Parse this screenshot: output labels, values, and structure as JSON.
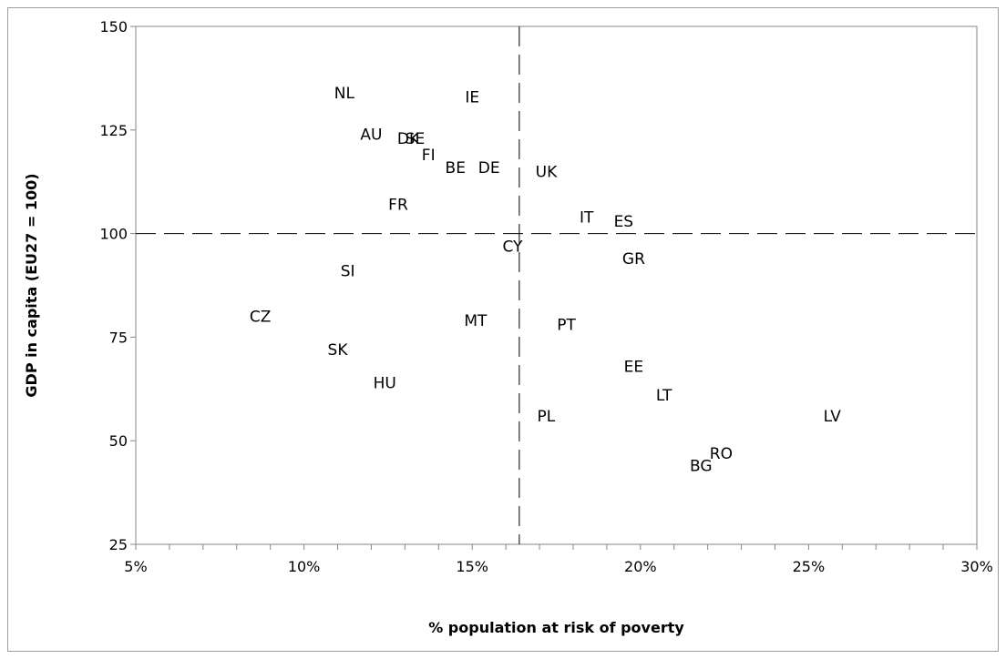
{
  "chart_data": {
    "type": "scatter",
    "title": "",
    "xlabel": "% population at risk of poverty",
    "ylabel": "GDP in capita (EU27 = 100)",
    "xlim": [
      0.05,
      0.3
    ],
    "ylim": [
      25,
      150
    ],
    "x_ticks": [
      0.05,
      0.1,
      0.15,
      0.2,
      0.25,
      0.3
    ],
    "x_tick_labels": [
      "5%",
      "10%",
      "15%",
      "20%",
      "25%",
      "30%"
    ],
    "y_ticks": [
      25,
      50,
      75,
      100,
      125,
      150
    ],
    "y_tick_labels": [
      "25",
      "50",
      "75",
      "100",
      "125",
      "150"
    ],
    "grid": false,
    "reference_lines": {
      "x": 0.164,
      "y": 100
    },
    "points": [
      {
        "label": "NL",
        "x": 0.112,
        "y": 134
      },
      {
        "label": "IE",
        "x": 0.15,
        "y": 133
      },
      {
        "label": "AU",
        "x": 0.12,
        "y": 124
      },
      {
        "label": "DK",
        "x": 0.131,
        "y": 123
      },
      {
        "label": "SE",
        "x": 0.133,
        "y": 123
      },
      {
        "label": "FI",
        "x": 0.137,
        "y": 119
      },
      {
        "label": "BE",
        "x": 0.145,
        "y": 116
      },
      {
        "label": "DE",
        "x": 0.155,
        "y": 116
      },
      {
        "label": "UK",
        "x": 0.172,
        "y": 115
      },
      {
        "label": "FR",
        "x": 0.128,
        "y": 107
      },
      {
        "label": "IT",
        "x": 0.184,
        "y": 104
      },
      {
        "label": "ES",
        "x": 0.195,
        "y": 103
      },
      {
        "label": "CY",
        "x": 0.162,
        "y": 97
      },
      {
        "label": "GR",
        "x": 0.198,
        "y": 94
      },
      {
        "label": "SI",
        "x": 0.113,
        "y": 91
      },
      {
        "label": "CZ",
        "x": 0.087,
        "y": 80
      },
      {
        "label": "MT",
        "x": 0.151,
        "y": 79
      },
      {
        "label": "PT",
        "x": 0.178,
        "y": 78
      },
      {
        "label": "SK",
        "x": 0.11,
        "y": 72
      },
      {
        "label": "EE",
        "x": 0.198,
        "y": 68
      },
      {
        "label": "HU",
        "x": 0.124,
        "y": 64
      },
      {
        "label": "LT",
        "x": 0.207,
        "y": 61
      },
      {
        "label": "PL",
        "x": 0.172,
        "y": 56
      },
      {
        "label": "LV",
        "x": 0.257,
        "y": 56
      },
      {
        "label": "RO",
        "x": 0.224,
        "y": 47
      },
      {
        "label": "BG",
        "x": 0.218,
        "y": 44
      }
    ]
  }
}
